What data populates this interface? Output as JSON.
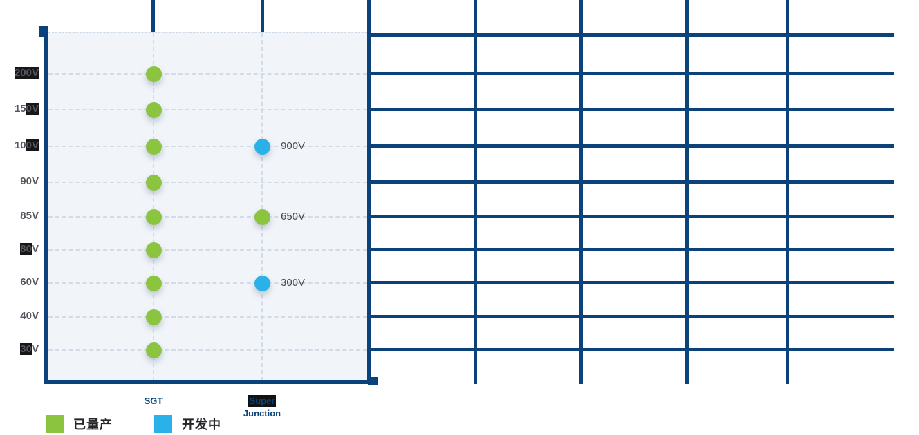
{
  "chart_data": {
    "type": "scatter",
    "x_categories": [
      {
        "lines": [
          "SGT"
        ],
        "highlighted_lines": []
      },
      {
        "lines": [
          "Super",
          "Junction"
        ],
        "highlighted_lines": [
          0
        ]
      }
    ],
    "y_axis_rows": [
      {
        "label": "200V",
        "highlight_range": [
          0,
          4
        ]
      },
      {
        "label": "150V",
        "highlight_range": [
          2,
          4
        ]
      },
      {
        "label": "100V",
        "highlight_range": [
          2,
          4
        ]
      },
      {
        "label": "90V",
        "highlight_range": null
      },
      {
        "label": "85V",
        "highlight_range": null
      },
      {
        "label": "80V",
        "highlight_range": [
          0,
          2
        ]
      },
      {
        "label": "60V",
        "highlight_range": null
      },
      {
        "label": "40V",
        "highlight_range": null
      },
      {
        "label": "30V",
        "highlight_range": [
          0,
          2
        ]
      }
    ],
    "legend": [
      {
        "label": "已量产",
        "color": "#8bc53f"
      },
      {
        "label": "开发中",
        "color": "#29b1e8"
      }
    ],
    "series": [
      {
        "name": "SGT",
        "points": [
          {
            "voltage": "200V",
            "status": "已量产",
            "grid_row": "200V",
            "value_label_visible": false
          },
          {
            "voltage": "150V",
            "status": "已量产",
            "grid_row": "150V",
            "value_label_visible": false
          },
          {
            "voltage": "100V",
            "status": "已量产",
            "grid_row": "100V",
            "value_label_visible": false
          },
          {
            "voltage": "90V",
            "status": "已量产",
            "grid_row": "90V",
            "value_label_visible": false
          },
          {
            "voltage": "85V",
            "status": "已量产",
            "grid_row": "85V",
            "value_label_visible": false
          },
          {
            "voltage": "80V",
            "status": "已量产",
            "grid_row": "80V",
            "value_label_visible": false
          },
          {
            "voltage": "60V",
            "status": "已量产",
            "grid_row": "60V",
            "value_label_visible": false
          },
          {
            "voltage": "40V",
            "status": "已量产",
            "grid_row": "40V",
            "value_label_visible": false
          },
          {
            "voltage": "30V",
            "status": "已量产",
            "grid_row": "30V",
            "value_label_visible": false
          }
        ]
      },
      {
        "name": "Super Junction",
        "points": [
          {
            "voltage": "900V",
            "status": "开发中",
            "grid_row": "100V",
            "value_label_visible": true
          },
          {
            "voltage": "650V",
            "status": "已量产",
            "grid_row": "85V",
            "value_label_visible": true
          },
          {
            "voltage": "300V",
            "status": "开发中",
            "grid_row": "60V",
            "value_label_visible": true
          }
        ]
      }
    ],
    "colors": {
      "grid_navy": "#0a437c",
      "produced_green": "#8bc53f",
      "developing_blue": "#29b1e8",
      "plot_background": "#f1f5fa",
      "dashed_gridline": "#ccd8e6",
      "highlight_box": "#17171a"
    },
    "layout_hints": {
      "legend_position": "bottom-left",
      "grid": "on",
      "axis_ranges": "categorical"
    }
  }
}
